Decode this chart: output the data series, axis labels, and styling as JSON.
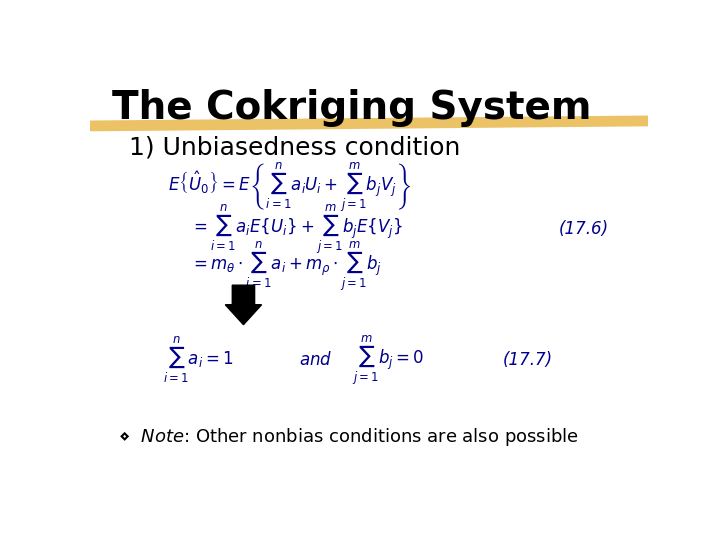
{
  "title": "The Cokriging System",
  "subtitle": "1) Unbiasedness condition",
  "highlight_color": "#E8B84B",
  "title_fontsize": 28,
  "subtitle_fontsize": 18,
  "eq_color": "#00008B",
  "text_color": "#000000",
  "note_color": "#000000",
  "bg_color": "#FFFFFF",
  "eq_label2": "(17.6)",
  "eq_label4": "(17.7)"
}
